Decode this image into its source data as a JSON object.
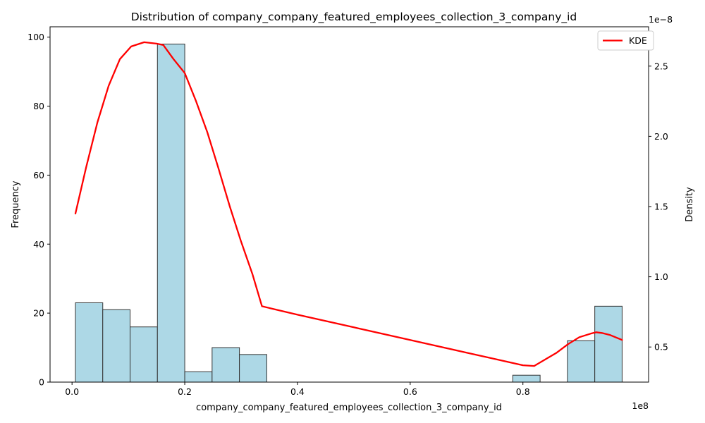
{
  "chart_data": {
    "type": "bar",
    "title": "Distribution of company_company_featured_employees_collection_3_company_id",
    "xlabel": "company_company_featured_employees_collection_3_company_id",
    "ylabel": "Frequency",
    "y2label": "Density",
    "x_offset_text": "1e8",
    "y2_offset_text": "1e−8",
    "xlim": [
      -3900000,
      102300000
    ],
    "ylim": [
      0,
      103
    ],
    "y2lim": [
      2.5e-09,
      2.78e-08
    ],
    "x_ticks": [
      {
        "value": 0,
        "label": "0.0"
      },
      {
        "value": 20000000,
        "label": "0.2"
      },
      {
        "value": 40000000,
        "label": "0.4"
      },
      {
        "value": 60000000,
        "label": "0.6"
      },
      {
        "value": 80000000,
        "label": "0.8"
      }
    ],
    "y_ticks": [
      {
        "value": 0,
        "label": "0"
      },
      {
        "value": 20,
        "label": "20"
      },
      {
        "value": 40,
        "label": "40"
      },
      {
        "value": 60,
        "label": "60"
      },
      {
        "value": 80,
        "label": "80"
      },
      {
        "value": 100,
        "label": "100"
      }
    ],
    "y2_ticks": [
      {
        "value": 5e-09,
        "label": "0.5"
      },
      {
        "value": 1e-08,
        "label": "1.0"
      },
      {
        "value": 1.5e-08,
        "label": "1.5"
      },
      {
        "value": 2e-08,
        "label": "2.0"
      },
      {
        "value": 2.5e-08,
        "label": "2.5"
      }
    ],
    "bins": [
      {
        "x0": 600000,
        "x1": 5450000,
        "count": 23
      },
      {
        "x0": 5450000,
        "x1": 10300000,
        "count": 21
      },
      {
        "x0": 10300000,
        "x1": 15150000,
        "count": 16
      },
      {
        "x0": 15150000,
        "x1": 20000000,
        "count": 98
      },
      {
        "x0": 20000000,
        "x1": 24850000,
        "count": 3
      },
      {
        "x0": 24850000,
        "x1": 29700000,
        "count": 10
      },
      {
        "x0": 29700000,
        "x1": 34550000,
        "count": 8
      },
      {
        "x0": 78200000,
        "x1": 83050000,
        "count": 2
      },
      {
        "x0": 87900000,
        "x1": 92750000,
        "count": 12
      },
      {
        "x0": 92750000,
        "x1": 97600000,
        "count": 22
      }
    ],
    "series": [
      {
        "name": "KDE",
        "type": "line",
        "color": "#ff0000",
        "x": [
          600000,
          2500000,
          4500000,
          6500000,
          8500000,
          10500000,
          12800000,
          15000000,
          16200000,
          18000000,
          20000000,
          22000000,
          24000000,
          26000000,
          28000000,
          30000000,
          32000000,
          33700000,
          40000000,
          50000000,
          60000000,
          70000000,
          80000000,
          82000000,
          86000000,
          88000000,
          90000000,
          92000000,
          93000000,
          94000000,
          95500000,
          97600000
        ],
        "y": [
          1.45e-08,
          1.78e-08,
          2.1e-08,
          2.36e-08,
          2.55e-08,
          2.64e-08,
          2.67e-08,
          2.66e-08,
          2.65e-08,
          2.55e-08,
          2.45e-08,
          2.25e-08,
          2.03e-08,
          1.77e-08,
          1.5e-08,
          1.25e-08,
          1.02e-08,
          7.9e-09,
          7.3e-09,
          6.4e-09,
          5.5e-09,
          4.6e-09,
          3.7e-09,
          3.65e-09,
          4.6e-09,
          5.2e-09,
          5.7e-09,
          5.95e-09,
          6.05e-09,
          6e-09,
          5.85e-09,
          5.5e-09
        ]
      }
    ],
    "bar_color": "#add8e6",
    "bar_edge_color": "#333333",
    "legend": {
      "entries": [
        "KDE"
      ],
      "position": "top-right"
    },
    "grid": false
  }
}
